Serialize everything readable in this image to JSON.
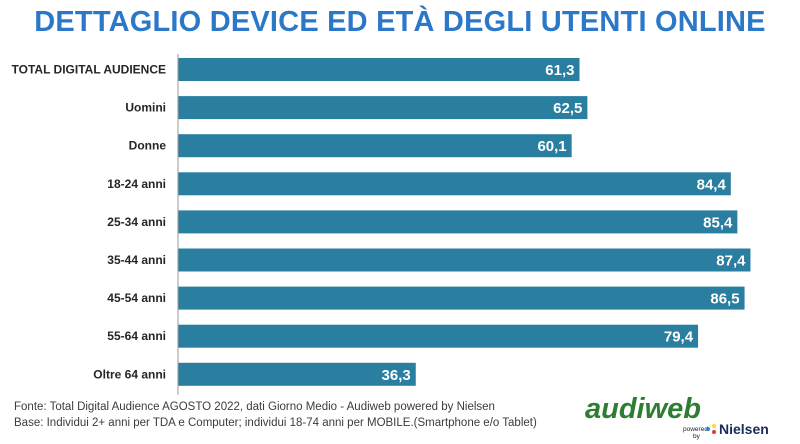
{
  "title": "DETTAGLIO DEVICE ED ETÀ DEGLI UTENTI ONLINE",
  "footnotes": {
    "source": "Fonte: Total Digital Audience AGOSTO 2022, dati Giorno Medio - Audiweb powered by Nielsen",
    "base": "Base:  Individui 2+ anni per TDA e Computer; individui 18-74 anni per MOBILE.(Smartphone e/o Tablet)"
  },
  "logo": {
    "brand": "audiweb",
    "tagline": "powered by",
    "partner": "Nielsen"
  },
  "colors": {
    "title": "#2b78c9",
    "bar": "#2a7fa1",
    "axis": "#9a9a9a",
    "logo_green": "#2e7d32"
  },
  "chart_data": {
    "type": "bar",
    "orientation": "horizontal",
    "categories": [
      "TOTAL DIGITAL AUDIENCE",
      "Uomini",
      "Donne",
      "18-24 anni",
      "25-34 anni",
      "35-44 anni",
      "45-54 anni",
      "55-64 anni",
      "Oltre 64 anni"
    ],
    "values": [
      61.3,
      62.5,
      60.1,
      84.4,
      85.4,
      87.4,
      86.5,
      79.4,
      36.3
    ],
    "value_labels": [
      "61,3",
      "62,5",
      "60,1",
      "84,4",
      "85,4",
      "87,4",
      "86,5",
      "79,4",
      "36,3"
    ],
    "xlim": [
      0,
      90
    ],
    "grid": false,
    "legend": "none"
  }
}
